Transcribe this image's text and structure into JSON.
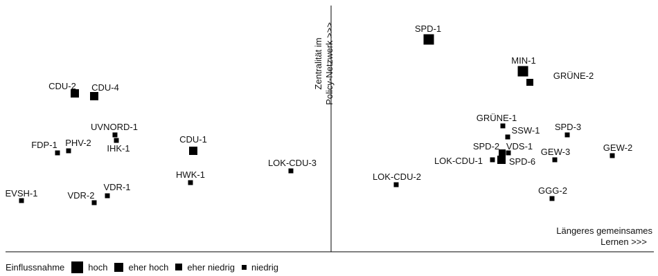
{
  "chart_data": {
    "type": "scatter",
    "y_axis_label_lines": [
      "Zentralität im",
      "Policy-Netzwerk >>>"
    ],
    "x_axis_label_lines": [
      "Längeres gemeinsames",
      "Lernen >>>"
    ],
    "size_categories": [
      "hoch",
      "eher hoch",
      "eher niedrig",
      "niedrig"
    ],
    "points": [
      {
        "label": "SPD-1",
        "size": "hoch"
      },
      {
        "label": "MIN-1",
        "size": "hoch"
      },
      {
        "label": "GRÜNE-2",
        "size": "eher niedrig"
      },
      {
        "label": "CDU-2",
        "size": "eher hoch"
      },
      {
        "label": "CDU-4",
        "size": "eher hoch"
      },
      {
        "label": "UVNORD-1",
        "size": "niedrig"
      },
      {
        "label": "IHK-1",
        "size": "niedrig"
      },
      {
        "label": "PHV-2",
        "size": "niedrig"
      },
      {
        "label": "FDP-1",
        "size": "niedrig"
      },
      {
        "label": "CDU-1",
        "size": "eher hoch"
      },
      {
        "label": "HWK-1",
        "size": "niedrig"
      },
      {
        "label": "LOK-CDU-3",
        "size": "niedrig"
      },
      {
        "label": "EVSH-1",
        "size": "niedrig"
      },
      {
        "label": "VDR-2",
        "size": "niedrig"
      },
      {
        "label": "VDR-1",
        "size": "niedrig"
      },
      {
        "label": "GRÜNE-1",
        "size": "niedrig"
      },
      {
        "label": "SSW-1",
        "size": "niedrig"
      },
      {
        "label": "SPD-3",
        "size": "niedrig"
      },
      {
        "label": "SPD-2",
        "size": "eher niedrig"
      },
      {
        "label": "VDS-1",
        "size": "niedrig"
      },
      {
        "label": "LOK-CDU-1",
        "size": "niedrig"
      },
      {
        "label": "SPD-6",
        "size": "eher hoch"
      },
      {
        "label": "GEW-3",
        "size": "niedrig"
      },
      {
        "label": "GEW-2",
        "size": "niedrig"
      },
      {
        "label": "LOK-CDU-2",
        "size": "niedrig"
      },
      {
        "label": "GGG-2",
        "size": "niedrig"
      }
    ]
  },
  "legend": {
    "title": "Einflussnahme",
    "items": [
      {
        "label": "hoch"
      },
      {
        "label": "eher hoch"
      },
      {
        "label": "eher niedrig"
      },
      {
        "label": "niedrig"
      }
    ]
  }
}
